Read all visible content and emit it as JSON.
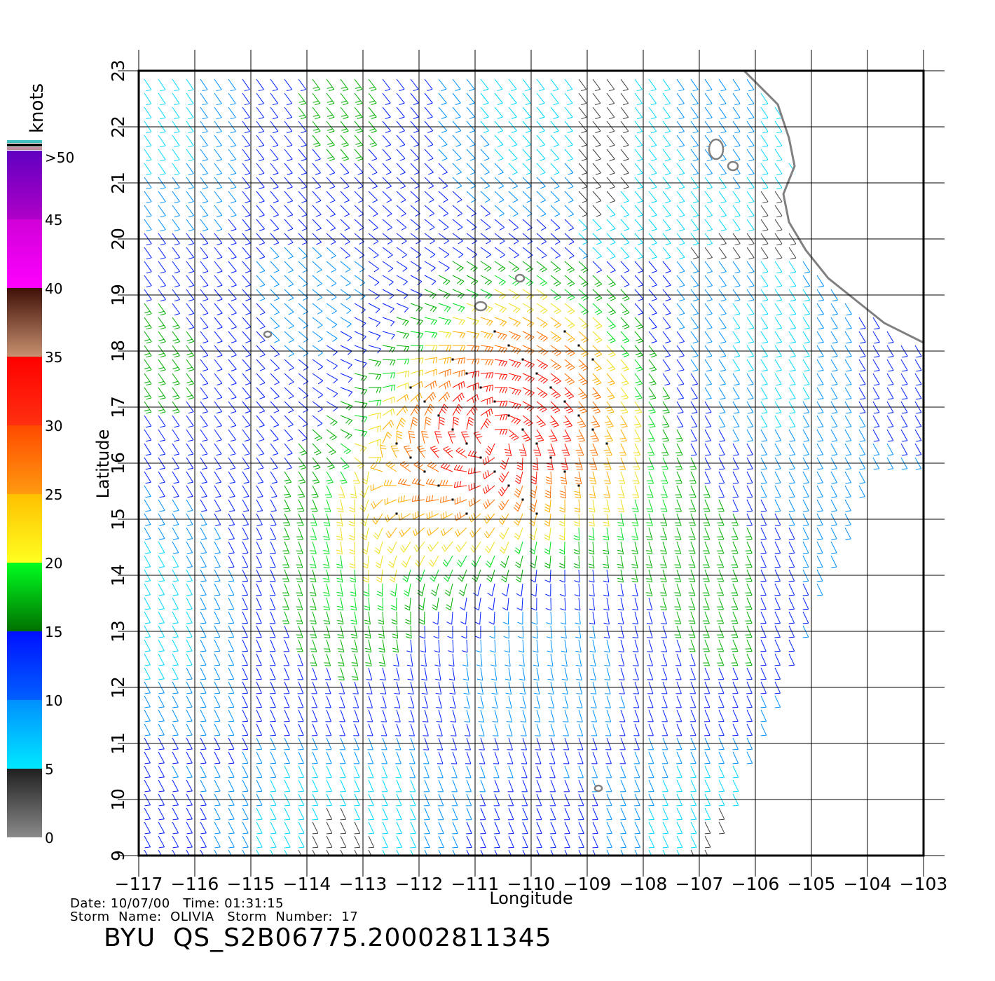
{
  "plot": {
    "x_axis_label": "Longitude",
    "y_axis_label": "Latitude",
    "lon_range": [
      -117,
      -103
    ],
    "lat_range": [
      9,
      23
    ],
    "x_ticks": [
      "−117",
      "−116",
      "−115",
      "−114",
      "−113",
      "−112",
      "−111",
      "−110",
      "−109",
      "−108",
      "−107",
      "−106",
      "−105",
      "−104",
      "−103"
    ],
    "y_ticks": [
      "9",
      "10",
      "11",
      "12",
      "13",
      "14",
      "15",
      "16",
      "17",
      "18",
      "19",
      "20",
      "21",
      "22",
      "23"
    ],
    "grid": true,
    "storm_center_lon": -110.7,
    "storm_center_lat": 16.4,
    "land_color": "#ffffff",
    "coast_color": "#808080"
  },
  "colorbar": {
    "unit_label": "knots",
    "tick_labels": [
      ">50",
      "45",
      "40",
      "35",
      "30",
      "25",
      "20",
      "15",
      "10",
      "5",
      "0"
    ],
    "bands": [
      {
        "from": 0,
        "to": 5,
        "colors": [
          "#8a8a8a",
          "#202020"
        ]
      },
      {
        "from": 5,
        "to": 10,
        "colors": [
          "#00e8ff",
          "#0090ff"
        ]
      },
      {
        "from": 10,
        "to": 15,
        "colors": [
          "#0060ff",
          "#0010ff"
        ]
      },
      {
        "from": 15,
        "to": 20,
        "colors": [
          "#007000",
          "#00ff20"
        ]
      },
      {
        "from": 20,
        "to": 25,
        "colors": [
          "#ffff20",
          "#ffc000"
        ]
      },
      {
        "from": 25,
        "to": 30,
        "colors": [
          "#ff9a10",
          "#ff4a00"
        ]
      },
      {
        "from": 30,
        "to": 35,
        "colors": [
          "#ff3010",
          "#ff0000"
        ]
      },
      {
        "from": 35,
        "to": 40,
        "colors": [
          "#c89070",
          "#401008"
        ]
      },
      {
        "from": 40,
        "to": 45,
        "colors": [
          "#ff00ff",
          "#d000d8"
        ]
      },
      {
        "from": 45,
        "to": 50,
        "colors": [
          "#b000c8",
          "#6000c0"
        ]
      }
    ]
  },
  "footer": {
    "date_line": "Date: 10/07/00   Time: 01:31:15",
    "storm_line": "Storm  Name:  OLIVIA   Storm  Number:  17",
    "file_id": "BYU  QS_S2B06775.20002811345"
  }
}
